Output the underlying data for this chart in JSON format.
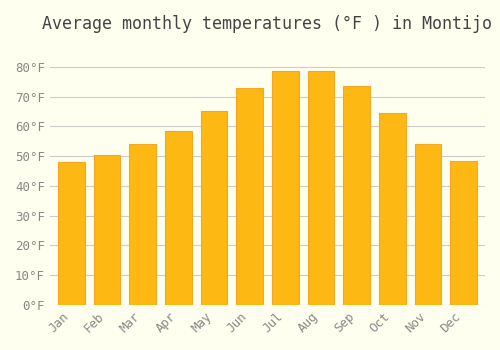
{
  "title": "Average monthly temperatures (°F ) in Montijo",
  "months": [
    "Jan",
    "Feb",
    "Mar",
    "Apr",
    "May",
    "Jun",
    "Jul",
    "Aug",
    "Sep",
    "Oct",
    "Nov",
    "Dec"
  ],
  "values": [
    48,
    50.5,
    54,
    58.5,
    65,
    73,
    78.5,
    78.5,
    73.5,
    64.5,
    54,
    48.5
  ],
  "bar_color_face": "#FDB813",
  "bar_color_edge": "#F5A623",
  "ylim": [
    0,
    88
  ],
  "yticks": [
    0,
    10,
    20,
    30,
    40,
    50,
    60,
    70,
    80
  ],
  "ytick_labels": [
    "0°F",
    "10°F",
    "20°F",
    "30°F",
    "40°F",
    "50°F",
    "60°F",
    "70°F",
    "80°F"
  ],
  "background_color": "#FFFFF0",
  "grid_color": "#CCCCCC",
  "title_fontsize": 12,
  "tick_fontsize": 9,
  "font_family": "monospace"
}
